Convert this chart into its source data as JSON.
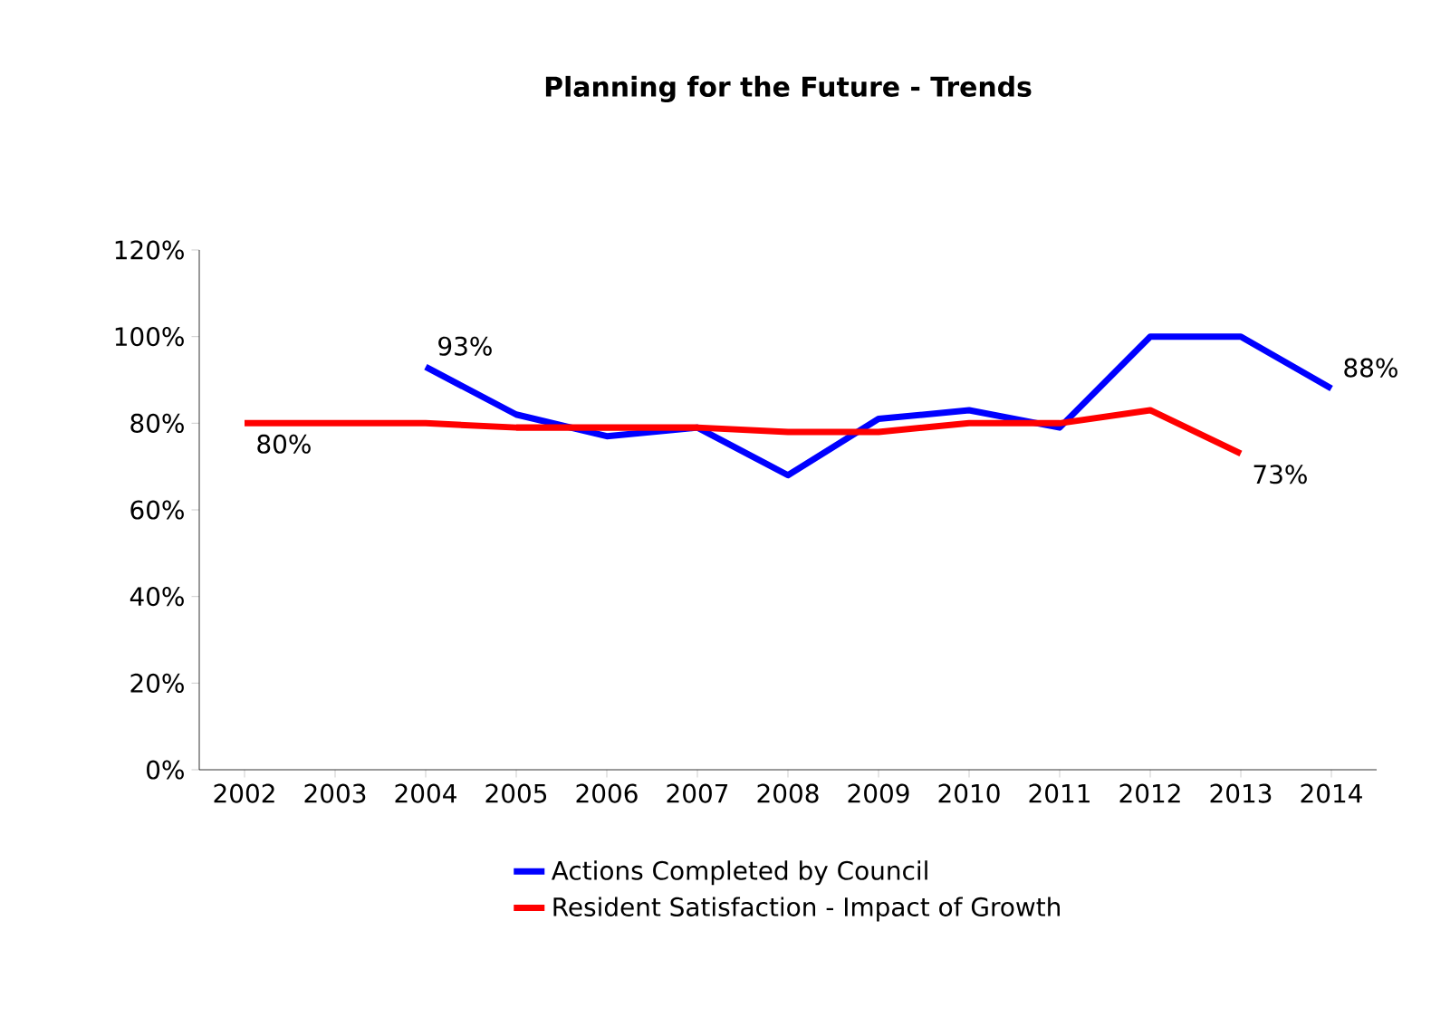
{
  "chart_data": {
    "type": "line",
    "title": "Planning for the Future - Trends",
    "categories": [
      "2002",
      "2003",
      "2004",
      "2005",
      "2006",
      "2007",
      "2008",
      "2009",
      "2010",
      "2011",
      "2012",
      "2013",
      "2014"
    ],
    "series": [
      {
        "name": "Actions Completed by Council",
        "color": "#0000ff",
        "values": [
          null,
          null,
          93,
          82,
          77,
          79,
          68,
          81,
          83,
          79,
          100,
          100,
          88
        ],
        "value_labels": [
          null,
          null,
          "93%",
          null,
          null,
          null,
          null,
          null,
          null,
          null,
          null,
          null,
          "88%"
        ]
      },
      {
        "name": "Resident Satisfaction - Impact of Growth",
        "color": "#ff0000",
        "values": [
          80,
          80,
          80,
          79,
          79,
          79,
          78,
          78,
          80,
          80,
          83,
          73,
          null
        ],
        "value_labels": [
          "80%",
          null,
          null,
          null,
          null,
          null,
          null,
          null,
          null,
          null,
          null,
          "73%",
          null
        ]
      }
    ],
    "ylim": [
      0,
      120
    ],
    "yticks": [
      {
        "value": 0,
        "label": "0%"
      },
      {
        "value": 20,
        "label": "20%"
      },
      {
        "value": 40,
        "label": "40%"
      },
      {
        "value": 60,
        "label": "60%"
      },
      {
        "value": 80,
        "label": "80%"
      },
      {
        "value": 100,
        "label": "100%"
      },
      {
        "value": 120,
        "label": "120%"
      }
    ],
    "grid": false,
    "legend": "bottom",
    "marker": "none",
    "line_style": "solid"
  }
}
